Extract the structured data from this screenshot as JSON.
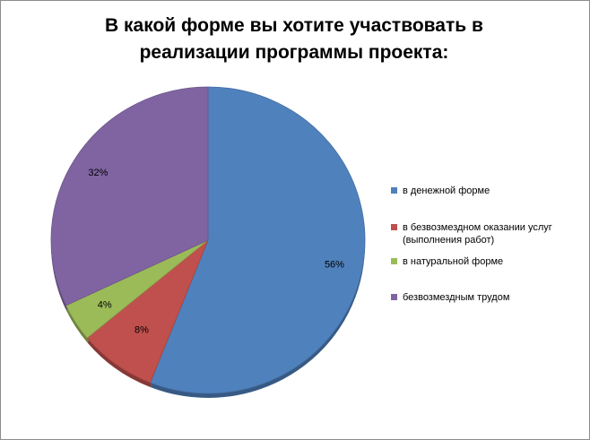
{
  "chart_data": {
    "type": "pie",
    "title": "В какой форме вы хотите участвовать в реализации программы проекта:",
    "title_lines": [
      "В какой форме вы хотите участвовать в",
      "реализации программы проекта:"
    ],
    "categories": [
      "в денежной форме",
      "в безвозмездном оказании услуг (выполнения работ)",
      "в натуральной форме",
      "безвозмездным трудом"
    ],
    "legend_labels": [
      " в денежной форме",
      " в безвозмездном оказании услуг\n(выполнения работ)",
      "в натуральной форме",
      "безвозмездным трудом"
    ],
    "values": [
      56,
      8,
      4,
      32
    ],
    "data_labels": [
      "56%",
      "8%",
      "4%",
      "32%"
    ],
    "colors": [
      "#4f81bd",
      "#c0504d",
      "#9bbb59",
      "#8064a2"
    ],
    "legend_position": "right"
  }
}
